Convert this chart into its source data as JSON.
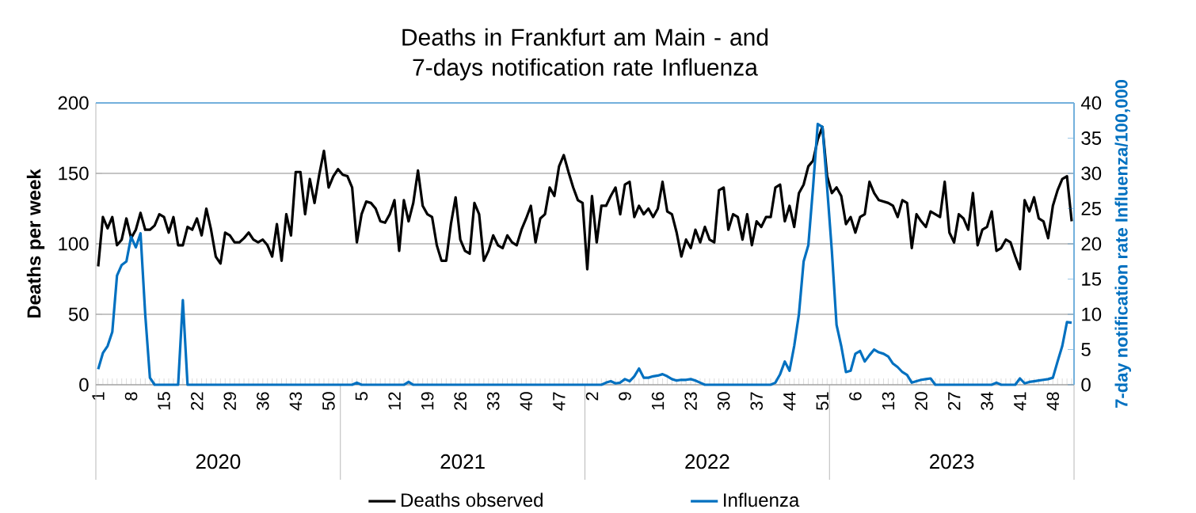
{
  "chart_data": {
    "type": "line",
    "title": "Deaths in Frankfurt am Main - and 7-days notification rate Influenza",
    "ylabel": "Deaths per week",
    "y2label": "7-day notification rate Influenza/100,000",
    "categories": [
      "1",
      null,
      null,
      null,
      null,
      null,
      null,
      "8",
      null,
      null,
      null,
      null,
      null,
      null,
      "15",
      null,
      null,
      null,
      null,
      null,
      null,
      "22",
      null,
      null,
      null,
      null,
      null,
      null,
      "29",
      null,
      null,
      null,
      null,
      null,
      null,
      "36",
      null,
      null,
      null,
      null,
      null,
      null,
      "43",
      null,
      null,
      null,
      null,
      null,
      null,
      "50",
      null,
      null,
      null,
      null,
      null,
      null,
      "5",
      null,
      null,
      null,
      null,
      null,
      null,
      "12",
      null,
      null,
      null,
      null,
      null,
      null,
      "19",
      null,
      null,
      null,
      null,
      null,
      null,
      "26",
      null,
      null,
      null,
      null,
      null,
      null,
      "33",
      null,
      null,
      null,
      null,
      null,
      null,
      "40",
      null,
      null,
      null,
      null,
      null,
      null,
      "47",
      null,
      null,
      null,
      null,
      null,
      null,
      "2",
      null,
      null,
      null,
      null,
      null,
      null,
      "9",
      null,
      null,
      null,
      null,
      null,
      null,
      "16",
      null,
      null,
      null,
      null,
      null,
      null,
      "23",
      null,
      null,
      null,
      null,
      null,
      null,
      "30",
      null,
      null,
      null,
      null,
      null,
      null,
      "37",
      null,
      null,
      null,
      null,
      null,
      null,
      "44",
      null,
      null,
      null,
      null,
      null,
      null,
      "51",
      null,
      null,
      null,
      null,
      null,
      null,
      "6",
      null,
      null,
      null,
      null,
      null,
      null,
      "13",
      null,
      null,
      null,
      null,
      null,
      null,
      "20",
      null,
      null,
      null,
      null,
      null,
      null,
      "27",
      null,
      null,
      null,
      null,
      null,
      null,
      "34",
      null,
      null,
      null,
      null,
      null,
      null,
      "41",
      null,
      null,
      null,
      null,
      null,
      null,
      "48",
      null,
      null,
      null,
      null
    ],
    "series": [
      {
        "name": "Deaths observed",
        "color": "#000000",
        "values": [
          84,
          119,
          111,
          119,
          99,
          103,
          118,
          104,
          110,
          122,
          110,
          110,
          113,
          121,
          119,
          108,
          119,
          99,
          99,
          112,
          110,
          118,
          106,
          125,
          110,
          91,
          86,
          108,
          106,
          101,
          101,
          104,
          108,
          103,
          101,
          103,
          99,
          91,
          114,
          88,
          121,
          106,
          151,
          151,
          121,
          146,
          129,
          149,
          166,
          140,
          148,
          153,
          149,
          148,
          140,
          101,
          121,
          130,
          129,
          125,
          116,
          115,
          121,
          131,
          95,
          131,
          116,
          129,
          152,
          127,
          121,
          119,
          99,
          88,
          88,
          114,
          133,
          103,
          95,
          93,
          129,
          121,
          88,
          95,
          106,
          99,
          97,
          106,
          101,
          99,
          110,
          118,
          127,
          101,
          118,
          121,
          140,
          134,
          155,
          163,
          151,
          140,
          131,
          129,
          82,
          134,
          101,
          127,
          127,
          134,
          140,
          121,
          142,
          144,
          119,
          127,
          121,
          125,
          119,
          125,
          144,
          123,
          121,
          108,
          91,
          103,
          97,
          110,
          101,
          112,
          103,
          101,
          138,
          140,
          110,
          121,
          119,
          103,
          121,
          99,
          116,
          112,
          119,
          119,
          140,
          142,
          116,
          127,
          112,
          136,
          142,
          155,
          159,
          174,
          183,
          148,
          136,
          140,
          134,
          114,
          119,
          108,
          119,
          121,
          144,
          136,
          131,
          130,
          129,
          127,
          119,
          131,
          129,
          97,
          121,
          116,
          112,
          123,
          121,
          119,
          144,
          108,
          101,
          121,
          118,
          110,
          136,
          99,
          110,
          112,
          123,
          95,
          97,
          103,
          101,
          91,
          82,
          131,
          123,
          133,
          118,
          116,
          104,
          127,
          138,
          146,
          148,
          116
        ]
      },
      {
        "name": "Influenza",
        "color": "#0070c0",
        "axis": "y2",
        "values": [
          2.2,
          4.5,
          5.5,
          7.5,
          15.5,
          17,
          17.5,
          21,
          19.5,
          21.5,
          10,
          1,
          0,
          0,
          0,
          0,
          0,
          0,
          12,
          0,
          0,
          0,
          0,
          0,
          0,
          0,
          0,
          0,
          0,
          0,
          0,
          0,
          0,
          0,
          0,
          0,
          0,
          0,
          0,
          0,
          0,
          0,
          0,
          0,
          0,
          0,
          0,
          0,
          0,
          0,
          0,
          0,
          0,
          0,
          0,
          0.3,
          0,
          0,
          0,
          0,
          0,
          0,
          0,
          0,
          0,
          0,
          0.4,
          0,
          0,
          0,
          0,
          0,
          0,
          0,
          0,
          0,
          0,
          0,
          0,
          0,
          0,
          0,
          0,
          0,
          0,
          0,
          0,
          0,
          0,
          0,
          0,
          0,
          0,
          0,
          0,
          0,
          0,
          0,
          0,
          0,
          0,
          0,
          0,
          0,
          0,
          0,
          0,
          0,
          0.3,
          0.5,
          0.2,
          0.3,
          0.8,
          0.5,
          1.2,
          2.3,
          1,
          1,
          1.2,
          1.3,
          1.5,
          1.2,
          0.8,
          0.6,
          0.7,
          0.7,
          0.8,
          0.6,
          0.3,
          0,
          0,
          0,
          0,
          0,
          0,
          0,
          0,
          0,
          0,
          0,
          0,
          0,
          0,
          0,
          0.3,
          1.5,
          3.3,
          2,
          5.5,
          10,
          17.5,
          19.8,
          28,
          37,
          36.6,
          28,
          19,
          8.5,
          5.5,
          1.8,
          2,
          4.4,
          4.8,
          3.3,
          4.2,
          5,
          4.6,
          4.4,
          4,
          3,
          2.5,
          1.8,
          1.4,
          0.3,
          0.5,
          0.7,
          0.8,
          0.9,
          0,
          0,
          0,
          0,
          0,
          0,
          0,
          0,
          0,
          0,
          0,
          0,
          0,
          0.3,
          0,
          0,
          0,
          0,
          0.9,
          0.2,
          0.4,
          0.5,
          0.6,
          0.7,
          0.8,
          1,
          3.3,
          5.5,
          8.9,
          8.8
        ]
      }
    ],
    "ylim": [
      0,
      200
    ],
    "yticks": [
      0,
      50,
      100,
      150,
      200
    ],
    "y2lim": [
      0,
      40
    ],
    "y2ticks": [
      0,
      5,
      10,
      15,
      20,
      25,
      30,
      35,
      40
    ],
    "grid": "y",
    "legend": "bottom",
    "annotations": [
      "2020",
      "2021",
      "2022",
      "2023"
    ]
  }
}
